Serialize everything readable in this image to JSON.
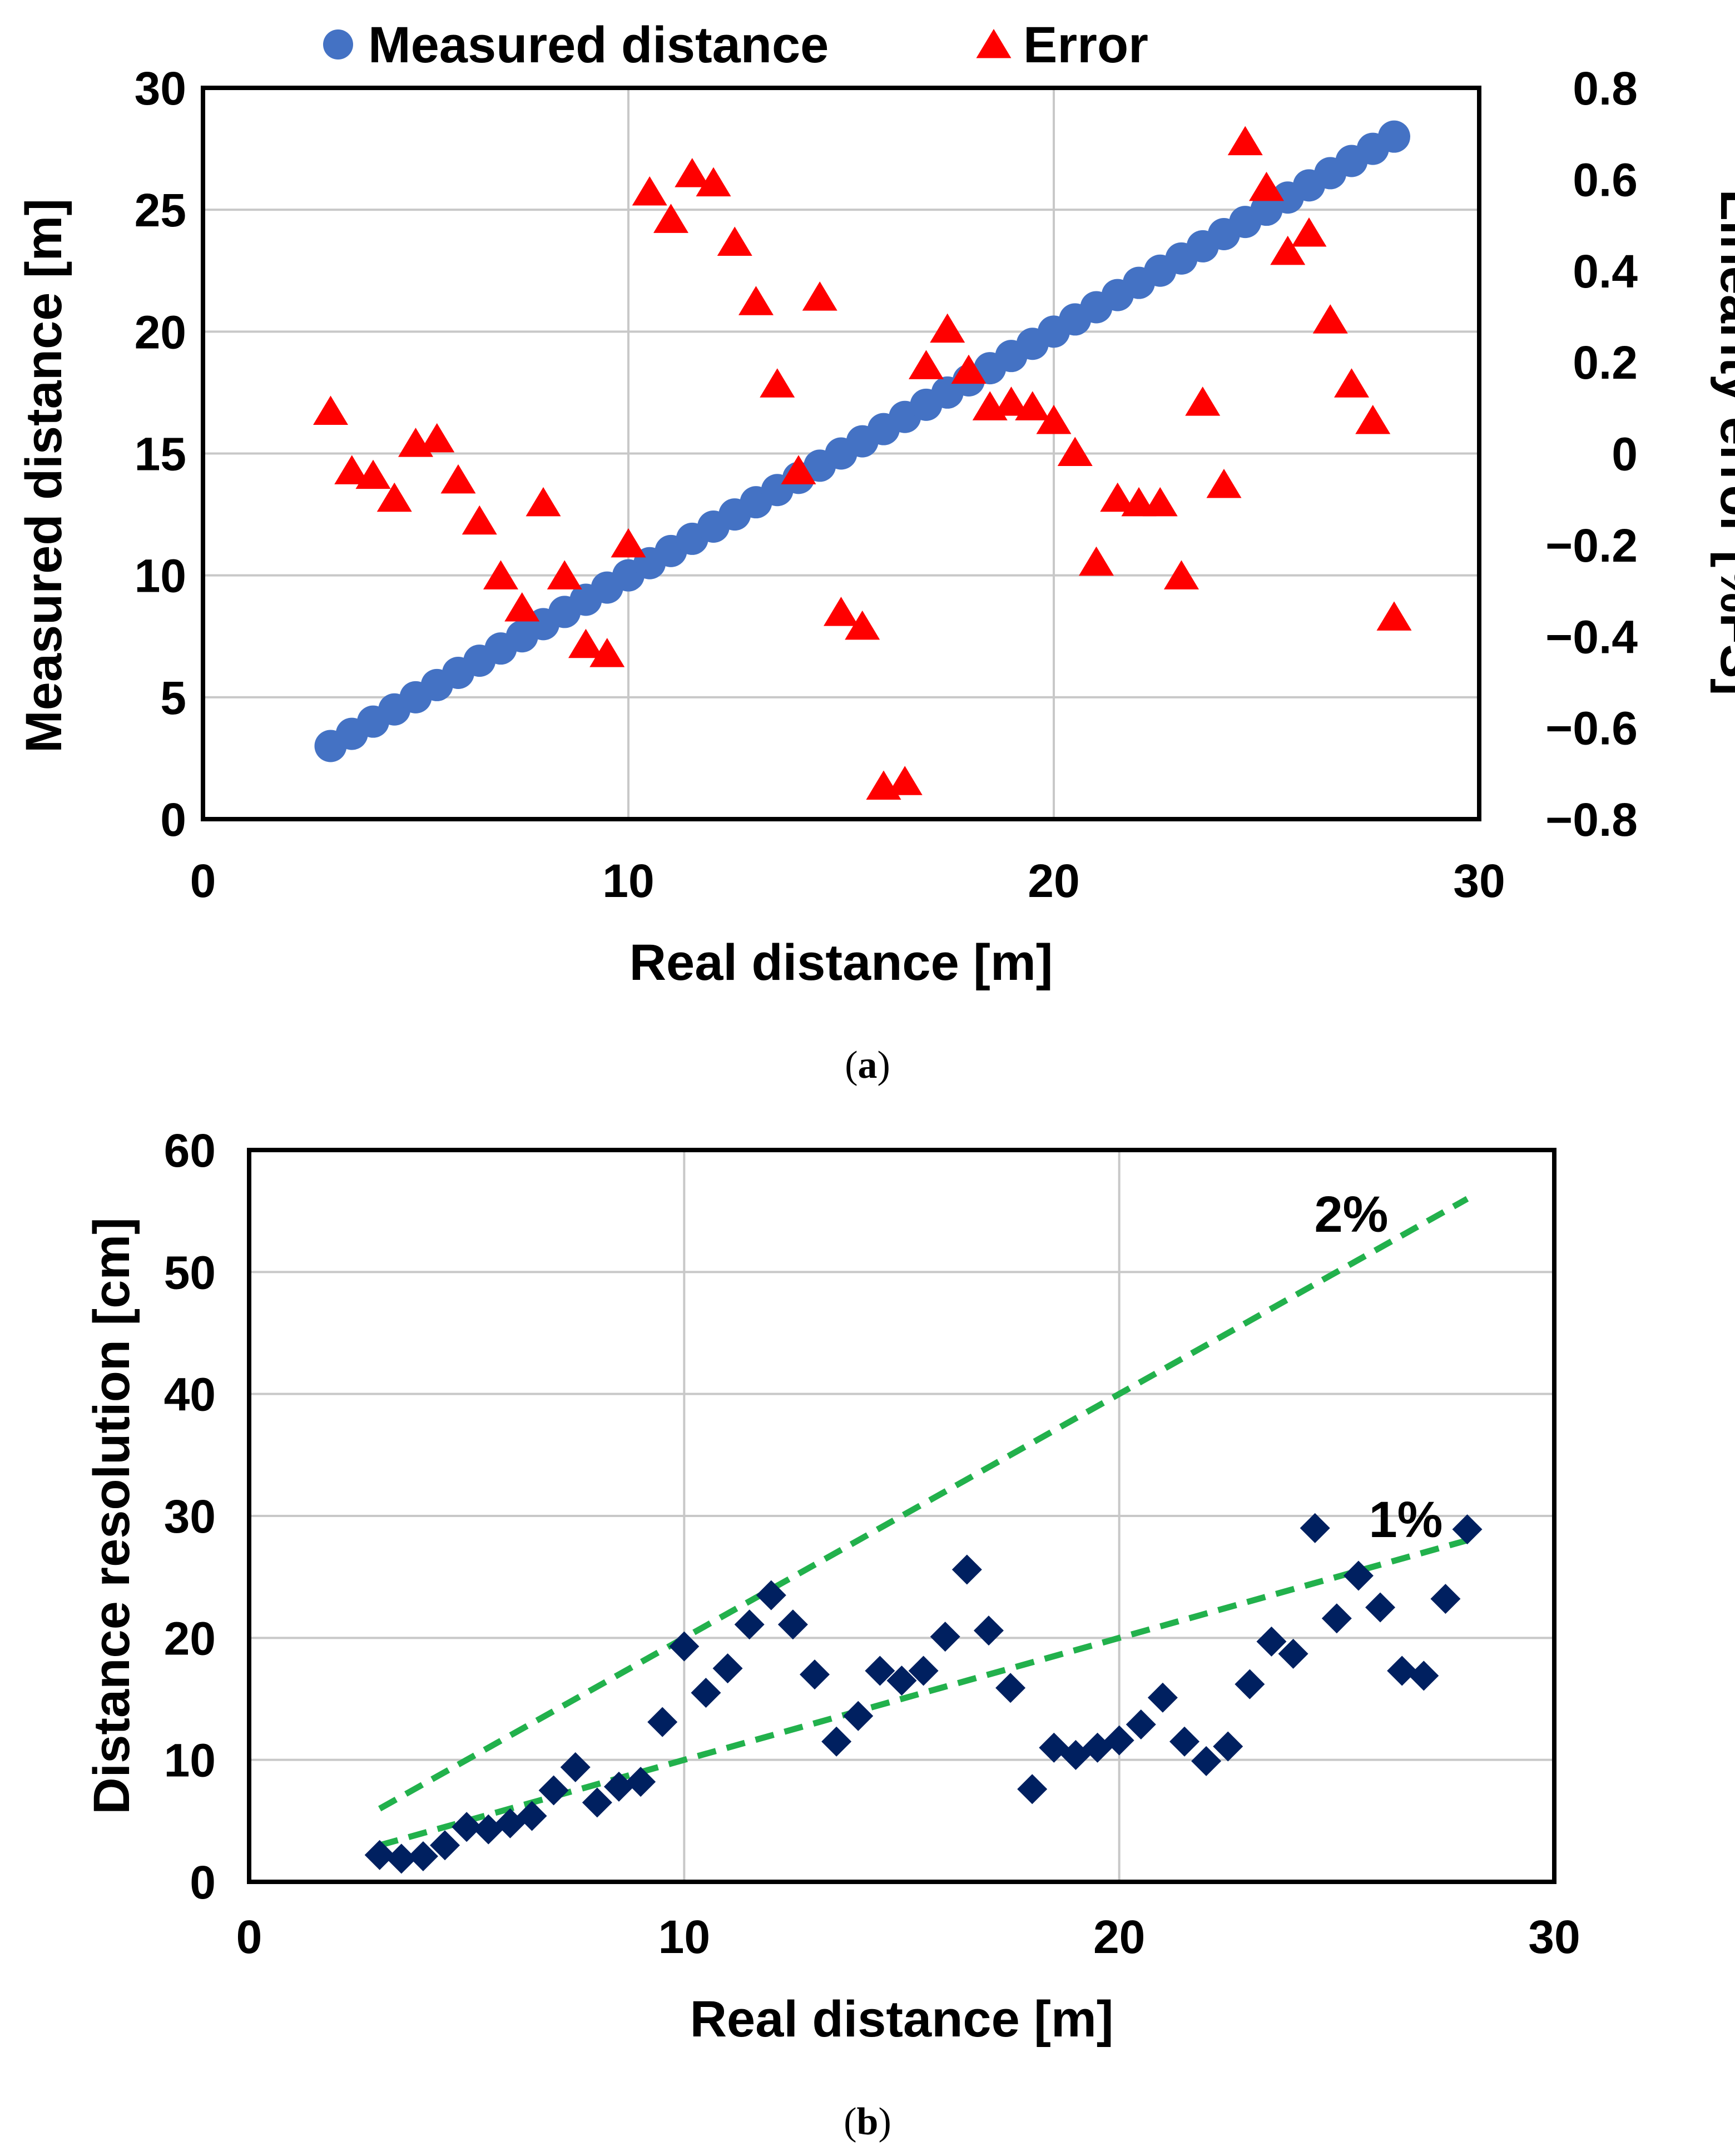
{
  "chart_data": [
    {
      "type": "scatter",
      "caption": "a",
      "xlabel": "Real distance [m]",
      "ylabel": "Measured distance [m]",
      "y2label": "Linearity error [%FS]",
      "xlim": [
        0,
        30
      ],
      "ylim": [
        0,
        30
      ],
      "y2lim": [
        -0.8,
        0.8
      ],
      "xticks": [
        "0",
        "10",
        "20",
        "30"
      ],
      "yticks": [
        "0",
        "5",
        "10",
        "15",
        "20",
        "25",
        "30"
      ],
      "y2ticks": [
        "−0.8",
        "−0.6",
        "−0.4",
        "−0.2",
        "0",
        "0.2",
        "0.4",
        "0.6",
        "0.8"
      ],
      "grid": true,
      "legend": "top",
      "series": [
        {
          "name": "Measured distance",
          "axis": "left",
          "marker": "circle",
          "color": "#4472C4",
          "x": [
            3.0,
            3.5,
            4.0,
            4.5,
            5.0,
            5.5,
            6.0,
            6.5,
            7.0,
            7.5,
            8.0,
            8.5,
            9.0,
            9.5,
            10.0,
            10.5,
            11.0,
            11.5,
            12.0,
            12.5,
            13.0,
            13.5,
            14.0,
            14.5,
            15.0,
            15.5,
            16.0,
            16.5,
            17.0,
            17.5,
            18.0,
            18.5,
            19.0,
            19.5,
            20.0,
            20.5,
            21.0,
            21.5,
            22.0,
            22.5,
            23.0,
            23.5,
            24.0,
            24.5,
            25.0,
            25.5,
            26.0,
            26.5,
            27.0,
            27.5,
            28.0
          ],
          "values": [
            3.0,
            3.5,
            4.0,
            4.5,
            5.0,
            5.5,
            6.0,
            6.5,
            7.0,
            7.5,
            8.0,
            8.5,
            9.0,
            9.5,
            10.0,
            10.5,
            11.0,
            11.5,
            12.0,
            12.5,
            13.0,
            13.5,
            14.0,
            14.5,
            15.0,
            15.5,
            16.0,
            16.5,
            17.0,
            17.5,
            18.0,
            18.5,
            19.0,
            19.5,
            20.0,
            20.5,
            21.0,
            21.5,
            22.0,
            22.5,
            23.0,
            23.5,
            24.0,
            24.5,
            25.0,
            25.5,
            26.0,
            26.5,
            27.0,
            27.5,
            28.0
          ]
        },
        {
          "name": "Error",
          "axis": "right",
          "marker": "triangle",
          "color": "#FF0000",
          "x": [
            3.0,
            3.5,
            4.0,
            4.5,
            5.0,
            5.5,
            6.0,
            6.5,
            7.0,
            7.5,
            8.0,
            8.5,
            9.0,
            9.5,
            10.0,
            10.5,
            11.0,
            11.5,
            12.0,
            12.5,
            13.0,
            13.5,
            14.0,
            14.5,
            15.0,
            15.5,
            16.0,
            16.5,
            17.0,
            17.5,
            18.0,
            18.5,
            19.0,
            19.5,
            20.0,
            20.5,
            21.0,
            21.5,
            22.0,
            22.5,
            23.0,
            23.5,
            24.0,
            24.5,
            25.0,
            25.5,
            26.0,
            26.5,
            27.0,
            27.5,
            28.0
          ],
          "values": [
            0.09,
            -0.04,
            -0.05,
            -0.1,
            0.02,
            0.03,
            -0.06,
            -0.15,
            -0.27,
            -0.34,
            -0.11,
            -0.27,
            -0.42,
            -0.44,
            -0.2,
            0.57,
            0.51,
            0.61,
            0.59,
            0.46,
            0.33,
            0.15,
            -0.04,
            0.34,
            -0.35,
            -0.38,
            -0.73,
            -0.72,
            0.19,
            0.27,
            0.18,
            0.1,
            0.11,
            0.1,
            0.07,
            0.0,
            -0.24,
            -0.1,
            -0.11,
            -0.11,
            -0.27,
            0.11,
            -0.07,
            0.68,
            0.58,
            0.44,
            0.48,
            0.29,
            0.15,
            0.07,
            -0.36
          ]
        }
      ]
    },
    {
      "type": "scatter",
      "caption": "b",
      "xlabel": "Real distance [m]",
      "ylabel": "Distance resolution [cm]",
      "xlim": [
        0,
        30
      ],
      "ylim": [
        0,
        60
      ],
      "xticks": [
        "0",
        "10",
        "20",
        "30"
      ],
      "yticks": [
        "0",
        "10",
        "20",
        "30",
        "40",
        "50",
        "60"
      ],
      "grid": true,
      "series": [
        {
          "name": "Distance resolution",
          "marker": "diamond",
          "color": "#002060",
          "x": [
            3.0,
            3.5,
            4.0,
            4.5,
            5.0,
            5.5,
            6.0,
            6.5,
            7.0,
            7.5,
            8.0,
            8.5,
            9.0,
            9.5,
            10.0,
            10.5,
            11.0,
            11.5,
            12.0,
            12.5,
            13.0,
            13.5,
            14.0,
            14.5,
            15.0,
            15.5,
            16.0,
            16.5,
            17.0,
            17.5,
            18.0,
            18.5,
            19.0,
            19.5,
            20.0,
            20.5,
            21.0,
            21.5,
            22.0,
            22.5,
            23.0,
            23.5,
            24.0,
            24.5,
            25.0,
            25.5,
            26.0,
            26.5,
            27.0,
            27.5,
            28.0
          ],
          "values": [
            2.2,
            1.9,
            2.1,
            3.0,
            4.5,
            4.3,
            4.8,
            5.4,
            7.5,
            9.4,
            6.5,
            7.8,
            8.2,
            13.1,
            19.3,
            15.5,
            17.5,
            21.1,
            23.5,
            21.1,
            17.0,
            11.5,
            13.6,
            17.3,
            16.5,
            17.3,
            20.1,
            25.6,
            20.6,
            15.9,
            7.6,
            11.0,
            10.4,
            11.0,
            11.6,
            12.9,
            15.1,
            11.5,
            9.9,
            11.1,
            16.2,
            19.7,
            18.7,
            29.0,
            21.6,
            25.1,
            22.5,
            17.3,
            16.9,
            23.2,
            28.9
          ]
        },
        {
          "name": "2%",
          "style": "dashed",
          "color": "#22B14C",
          "x": [
            3,
            28
          ],
          "values": [
            6,
            56
          ]
        },
        {
          "name": "1%",
          "style": "dashed",
          "color": "#22B14C",
          "x": [
            3,
            28
          ],
          "values": [
            3,
            28
          ]
        }
      ]
    }
  ]
}
